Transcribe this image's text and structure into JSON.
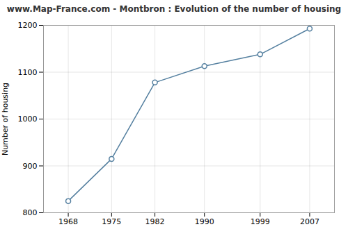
{
  "chart_data": {
    "type": "line",
    "title": "www.Map-France.com - Montbron : Evolution of the number of housing",
    "ylabel": "Number of housing",
    "x": [
      1968,
      1975,
      1982,
      1990,
      1999,
      2007
    ],
    "values": [
      825,
      915,
      1078,
      1113,
      1138,
      1193
    ],
    "color": "#5580a0",
    "marker": "circle",
    "xlim": [
      1964,
      2011
    ],
    "ylim": [
      800,
      1200
    ],
    "xticks": [
      1968,
      1975,
      1982,
      1990,
      1999,
      2007
    ],
    "yticks": [
      800,
      900,
      1000,
      1100,
      1200
    ],
    "grid": true
  }
}
